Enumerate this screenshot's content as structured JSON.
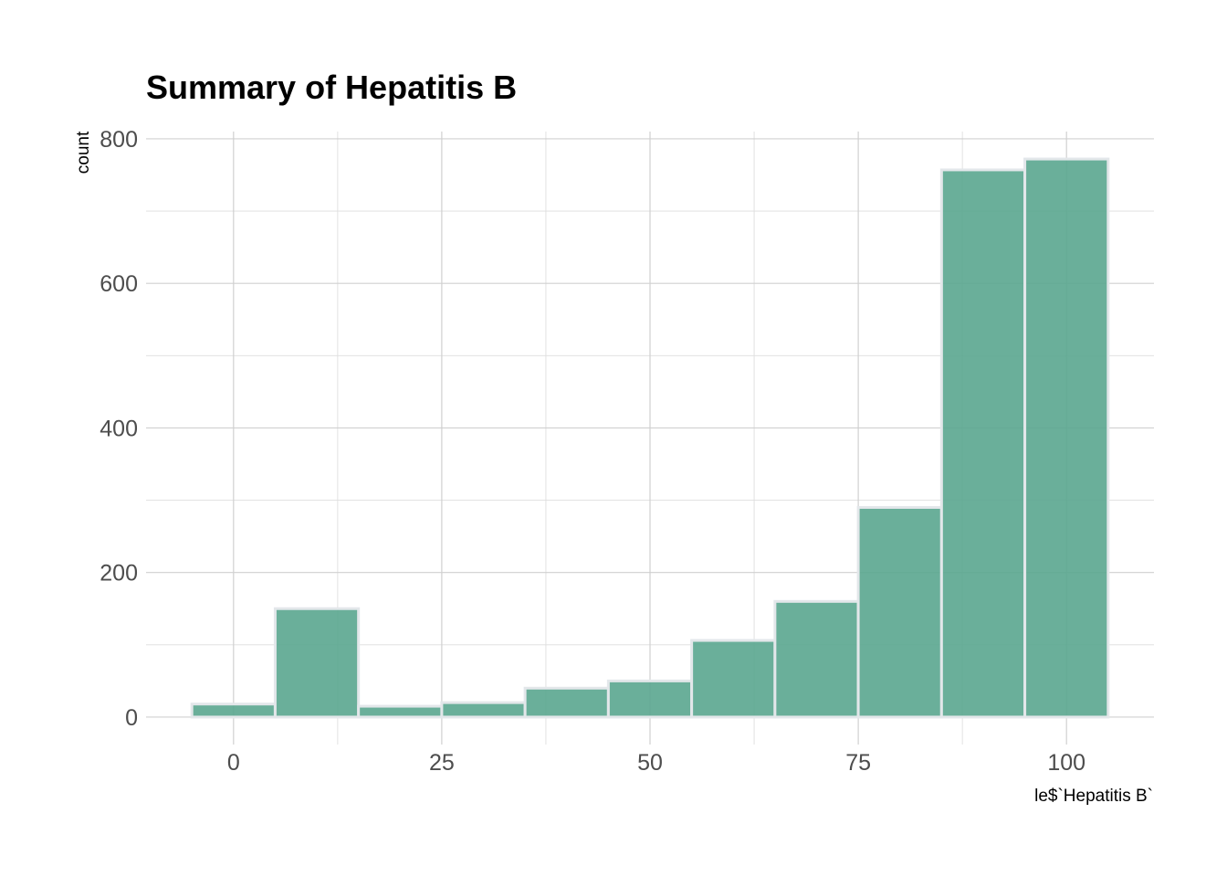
{
  "chart_data": {
    "type": "bar",
    "title": "Summary of Hepatitis B",
    "xlabel": "le$`Hepatitis B`",
    "ylabel": "count",
    "bins": [
      {
        "x_start": -5,
        "x_end": 5,
        "count": 18
      },
      {
        "x_start": 5,
        "x_end": 15,
        "count": 150
      },
      {
        "x_start": 15,
        "x_end": 25,
        "count": 15
      },
      {
        "x_start": 25,
        "x_end": 35,
        "count": 20
      },
      {
        "x_start": 35,
        "x_end": 45,
        "count": 40
      },
      {
        "x_start": 45,
        "x_end": 55,
        "count": 50
      },
      {
        "x_start": 55,
        "x_end": 65,
        "count": 106
      },
      {
        "x_start": 65,
        "x_end": 75,
        "count": 160
      },
      {
        "x_start": 75,
        "x_end": 85,
        "count": 290
      },
      {
        "x_start": 85,
        "x_end": 95,
        "count": 757
      },
      {
        "x_start": 95,
        "x_end": 105,
        "count": 772
      }
    ],
    "xlim": [
      -10.5,
      110.5
    ],
    "ylim": [
      -38,
      810
    ],
    "x_ticks": [
      0,
      25,
      50,
      75,
      100
    ],
    "x_tick_labels": [
      "0",
      "25",
      "50",
      "75",
      "100"
    ],
    "y_ticks": [
      0,
      200,
      400,
      600,
      800
    ],
    "y_tick_labels": [
      "0",
      "200",
      "400",
      "600",
      "800"
    ],
    "grid": true,
    "colors": {
      "bar_fill": "#5aa68f",
      "bar_outline": "#e3e7ea"
    }
  }
}
